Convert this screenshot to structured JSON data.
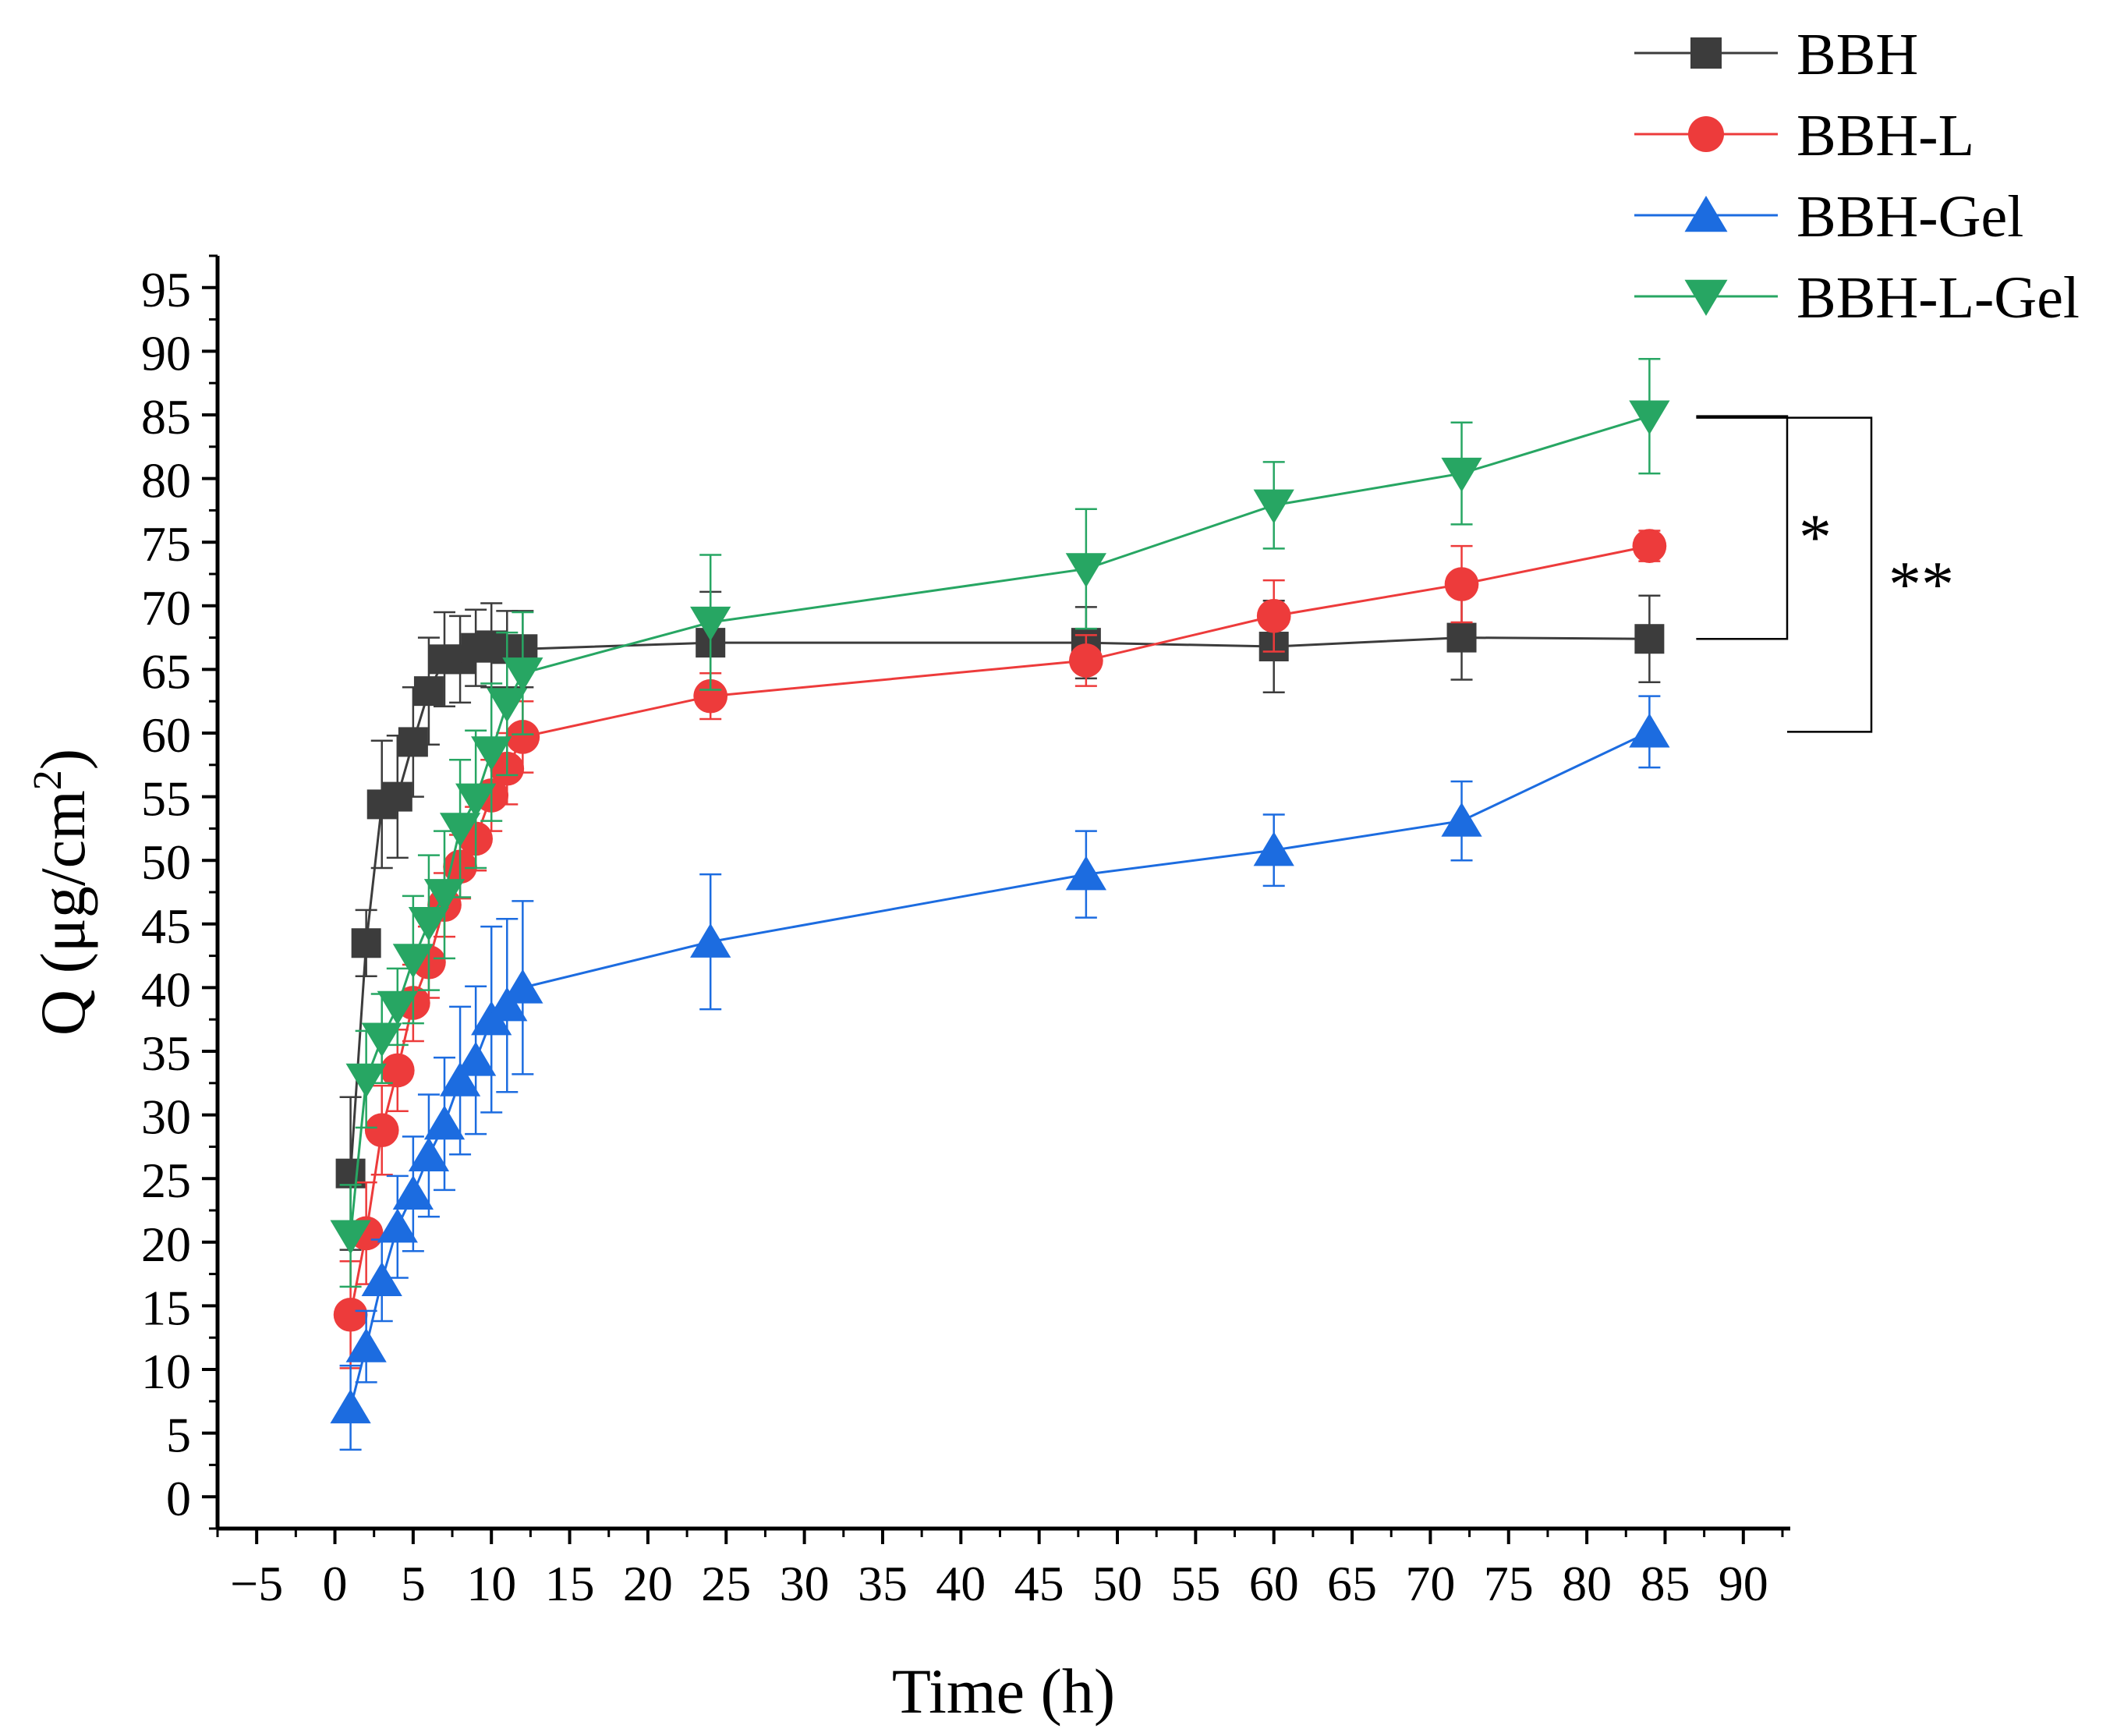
{
  "chart_data": {
    "type": "line",
    "title": "",
    "xlabel": "Time (h)",
    "ylabel_main": "Q (μg/cm",
    "ylabel_sup": "2",
    "ylabel_close": ")",
    "xlim": [
      -7.5,
      93
    ],
    "ylim": [
      -2.5,
      97.5
    ],
    "xticks": [
      -5,
      0,
      5,
      10,
      15,
      20,
      25,
      30,
      35,
      40,
      45,
      50,
      55,
      60,
      65,
      70,
      75,
      80,
      85,
      90
    ],
    "yticks": [
      0,
      5,
      10,
      15,
      20,
      25,
      30,
      35,
      40,
      45,
      50,
      55,
      60,
      65,
      70,
      75,
      80,
      85,
      90,
      95
    ],
    "xtick_labels": [
      "−5",
      "0",
      "5",
      "10",
      "15",
      "20",
      "25",
      "30",
      "35",
      "40",
      "45",
      "50",
      "55",
      "60",
      "65",
      "70",
      "75",
      "80",
      "85",
      "90"
    ],
    "x": [
      1,
      2,
      3,
      4,
      5,
      6,
      7,
      8,
      9,
      10,
      11,
      12,
      24,
      48,
      60,
      72,
      84
    ],
    "series": [
      {
        "name": "BBH",
        "color": "#3c3c3c",
        "marker": "square",
        "values": [
          25.4,
          43.5,
          54.4,
          55.0,
          59.3,
          63.3,
          65.8,
          65.8,
          66.7,
          66.9,
          66.6,
          66.6,
          67.1,
          67.1,
          66.8,
          67.5,
          67.4
        ],
        "errors": [
          6.0,
          2.6,
          5.0,
          4.8,
          4.3,
          4.2,
          3.7,
          3.4,
          3.0,
          3.3,
          3.0,
          3.0,
          4.0,
          2.8,
          3.6,
          3.3,
          3.4
        ]
      },
      {
        "name": "BBH-L",
        "color": "#ed3b3b",
        "marker": "circle",
        "values": [
          14.3,
          20.7,
          28.8,
          33.5,
          38.8,
          42.0,
          46.5,
          49.5,
          51.7,
          55.1,
          57.2,
          59.7,
          62.9,
          65.7,
          69.2,
          71.7,
          74.7
        ],
        "errors": [
          4.2,
          4.0,
          3.5,
          3.2,
          3.0,
          2.8,
          2.5,
          2.5,
          2.5,
          2.8,
          2.8,
          2.8,
          1.8,
          2.0,
          2.8,
          3.0,
          1.2
        ]
      },
      {
        "name": "BBH-Gel",
        "color": "#1c6ce0",
        "marker": "triangle-up",
        "values": [
          7.0,
          11.8,
          17.0,
          21.2,
          23.8,
          26.8,
          29.3,
          32.7,
          34.3,
          37.5,
          38.6,
          40.0,
          43.6,
          48.9,
          50.8,
          53.1,
          60.1
        ],
        "errors": [
          3.3,
          2.8,
          3.2,
          4.0,
          4.5,
          4.8,
          5.2,
          5.8,
          5.8,
          7.3,
          6.8,
          6.8,
          5.3,
          3.4,
          2.8,
          3.1,
          2.8
        ]
      },
      {
        "name": "BBH-L-Gel",
        "color": "#27a663",
        "marker": "triangle-down",
        "values": [
          20.5,
          32.8,
          36.0,
          38.5,
          42.2,
          45.1,
          47.3,
          52.5,
          54.8,
          58.5,
          62.3,
          64.7,
          68.7,
          72.9,
          77.9,
          80.4,
          84.9
        ],
        "errors": [
          4.0,
          3.8,
          3.5,
          3.0,
          5.0,
          5.3,
          5.0,
          5.4,
          5.4,
          5.4,
          5.6,
          4.8,
          5.3,
          4.7,
          3.4,
          4.0,
          4.5
        ]
      }
    ],
    "legend_position": "top-right",
    "annotations": [
      {
        "label": "*",
        "from_value": 84.9,
        "to_value": 67.4
      },
      {
        "label": "**",
        "from_value": 84.9,
        "to_value": 60.1
      }
    ]
  }
}
